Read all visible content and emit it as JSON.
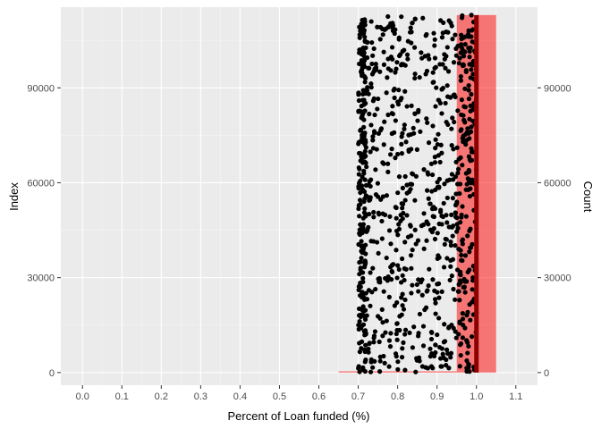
{
  "chart_data": {
    "type": "scatter",
    "xlabel": "Percent of Loan funded (%)",
    "ylabel_left": "Index",
    "ylabel_right": "Count",
    "xlim": [
      -0.055,
      1.155
    ],
    "ylim": [
      -4000,
      115500
    ],
    "x_ticks": [
      0.0,
      0.1,
      0.2,
      0.3,
      0.4,
      0.5,
      0.6,
      0.7,
      0.8,
      0.9,
      1.0,
      1.1
    ],
    "x_tick_labels": [
      "0.0",
      "0.1",
      "0.2",
      "0.3",
      "0.4",
      "0.5",
      "0.6",
      "0.7",
      "0.8",
      "0.9",
      "1.0",
      "1.1"
    ],
    "y_ticks": [
      0,
      30000,
      60000,
      90000
    ],
    "y_tick_labels": [
      "0",
      "30000",
      "60000",
      "90000"
    ],
    "y_right_tick_labels": [
      "0",
      "30000",
      "60000",
      "90000"
    ],
    "grid": true,
    "background": "#ebebeb",
    "point_color": "#000000",
    "histogram": {
      "fill": "#ff0000",
      "opacity": 0.5,
      "bins": [
        {
          "x0": 0.65,
          "x1": 0.95,
          "count": 400
        },
        {
          "x0": 0.95,
          "x1": 1.05,
          "count": 113000
        }
      ]
    },
    "vline": {
      "x": 1.0,
      "color": "#8b0000"
    },
    "scatter": {
      "n_points": 1000,
      "x_range": [
        0.7,
        1.0
      ],
      "index_range": [
        0,
        113000
      ],
      "x_dense_range": [
        0.7,
        0.72
      ]
    }
  }
}
